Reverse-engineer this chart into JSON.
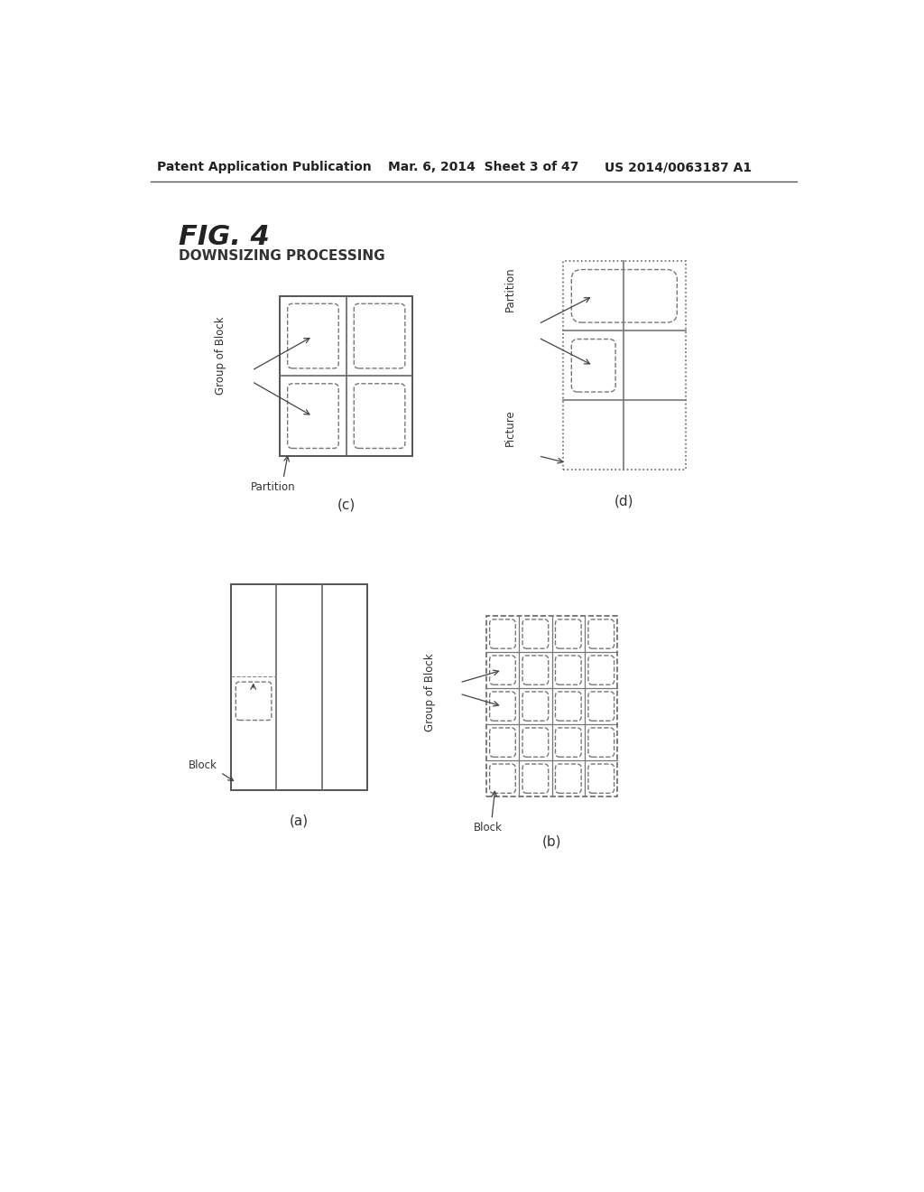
{
  "header_left": "Patent Application Publication",
  "header_mid": "Mar. 6, 2014  Sheet 3 of 47",
  "header_right": "US 2014/0063187 A1",
  "fig_label": "FIG. 4",
  "fig_subtitle": "DOWNSIZING PROCESSING",
  "bg_color": "#ffffff",
  "line_color": "#555555",
  "dashed_color": "#888888"
}
